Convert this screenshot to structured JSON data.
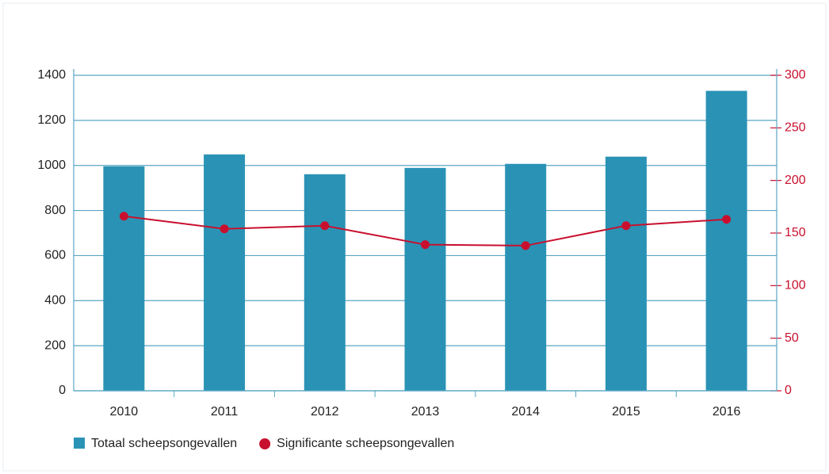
{
  "chart_data": {
    "type": "bar_line",
    "categories": [
      "2010",
      "2011",
      "2012",
      "2013",
      "2014",
      "2015",
      "2016"
    ],
    "series": [
      {
        "name": "Totaal scheepsongevallen",
        "type": "bar",
        "color": "#2a93b5",
        "axis": "y",
        "values": [
          996,
          1049,
          961,
          989,
          1007,
          1039,
          1331
        ]
      },
      {
        "name": "Significante scheepsongevallen",
        "type": "line",
        "color": "#c8102e",
        "axis": "y2",
        "values": [
          166,
          154,
          157,
          139,
          138,
          157,
          163
        ]
      }
    ],
    "ylim": [
      0,
      1400
    ],
    "yticks": [
      0,
      200,
      400,
      600,
      800,
      1000,
      1200,
      1400
    ],
    "y2lim": [
      0,
      300
    ],
    "y2ticks": [
      0,
      50,
      100,
      150,
      200,
      250,
      300
    ],
    "grid": true,
    "legend": "bottom-left"
  }
}
